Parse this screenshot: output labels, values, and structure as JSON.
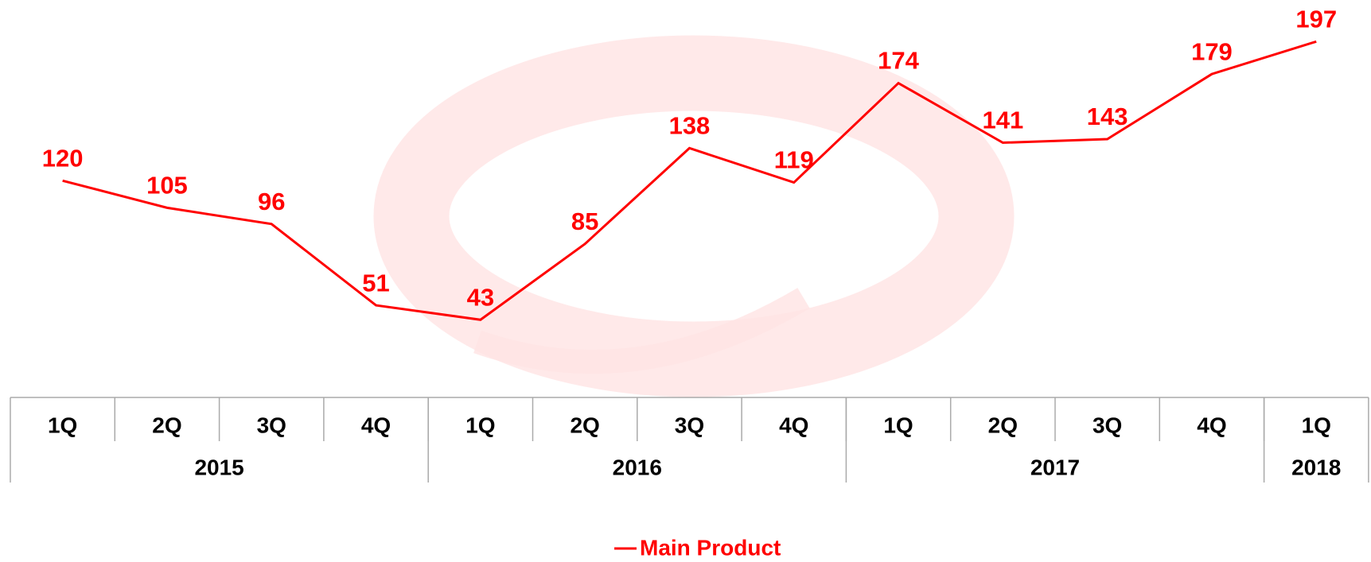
{
  "chart_data": {
    "type": "line",
    "groups": [
      {
        "name": "2015",
        "categories": [
          "1Q",
          "2Q",
          "3Q",
          "4Q"
        ]
      },
      {
        "name": "2016",
        "categories": [
          "1Q",
          "2Q",
          "3Q",
          "4Q"
        ]
      },
      {
        "name": "2017",
        "categories": [
          "1Q",
          "2Q",
          "3Q",
          "4Q"
        ]
      },
      {
        "name": "2018",
        "categories": [
          "1Q"
        ]
      }
    ],
    "series": [
      {
        "name": "Main Product",
        "color": "#ff0000",
        "values": [
          120,
          105,
          96,
          51,
          43,
          85,
          138,
          119,
          174,
          141,
          143,
          179,
          197
        ]
      }
    ],
    "ylim": [
      0,
      220
    ]
  }
}
